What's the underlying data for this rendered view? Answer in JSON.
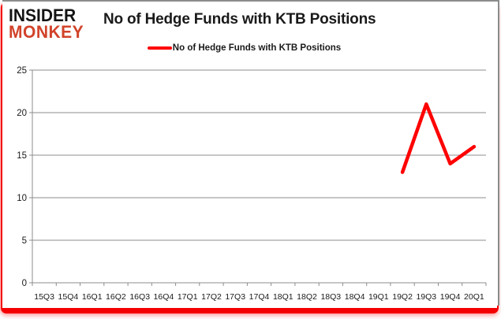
{
  "logo": {
    "line1": "INSIDER",
    "line2": "MONKEY"
  },
  "header": {
    "title": "No of Hedge Funds with KTB Positions"
  },
  "legend": {
    "label": "No of Hedge Funds with KTB Positions"
  },
  "colors": {
    "series": "#ff0000",
    "grid": "#8c8c8c",
    "axis": "#8c8c8c",
    "tick_text": "#1a1a1a",
    "logo_top": "#141414",
    "logo_bottom": "#d1432a",
    "highlight_frame": "#f40000",
    "card_border": "#8c8c8c"
  },
  "chart_data": {
    "type": "line",
    "title": "No of Hedge Funds with KTB Positions",
    "categories": [
      "15Q3",
      "15Q4",
      "16Q1",
      "16Q2",
      "16Q3",
      "16Q4",
      "17Q1",
      "17Q2",
      "17Q3",
      "17Q4",
      "18Q1",
      "18Q2",
      "18Q3",
      "18Q4",
      "19Q1",
      "19Q2",
      "19Q3",
      "19Q4",
      "20Q1"
    ],
    "series": [
      {
        "name": "No of Hedge Funds with KTB Positions",
        "color": "#ff0000",
        "values": [
          null,
          null,
          null,
          null,
          null,
          null,
          null,
          null,
          null,
          null,
          null,
          null,
          null,
          null,
          null,
          13,
          21,
          14,
          16
        ]
      }
    ],
    "xlabel": "",
    "ylabel": "",
    "ylim": [
      0,
      25
    ],
    "yticks": [
      0,
      5,
      10,
      15,
      20,
      25
    ],
    "grid": true,
    "legend_position": "top"
  }
}
